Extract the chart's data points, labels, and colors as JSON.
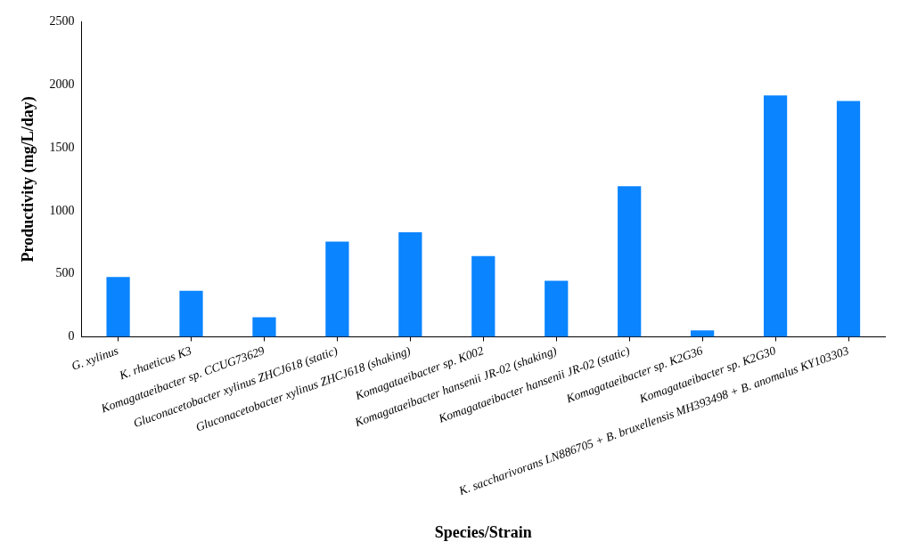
{
  "chart_data": {
    "type": "bar",
    "xlabel": "Species/Strain",
    "ylabel": "Productivity (mg/L/day)",
    "categories": [
      "G. xylinus",
      "K. rhaeticus K3",
      "Komagataeibacter sp. CCUG73629",
      "Gluconacetobacter xylinus ZHCJ618 (static)",
      "Gluconacetobacter xylinus ZHCJ618 (shaking)",
      "Komagataeibacter sp. K002",
      "Komagataeibacter hansenii JR-02 (shaking)",
      "Komagataeibacter hansenii JR-02 (static)",
      "Komagataeibacter sp. K2G36",
      "Komagataeibacter sp. K2G30",
      "K. saccharivorans LN886705 + B. bruxellensis MH393498 + B. anomalus KY103303"
    ],
    "values": [
      475,
      365,
      155,
      755,
      830,
      640,
      445,
      1195,
      50,
      1915,
      1870
    ],
    "color": "#0a84ff",
    "ylim": [
      0,
      2500
    ],
    "yticks": [
      0,
      500,
      1000,
      1500,
      2000,
      2500
    ],
    "grid": false,
    "legend": false
  }
}
